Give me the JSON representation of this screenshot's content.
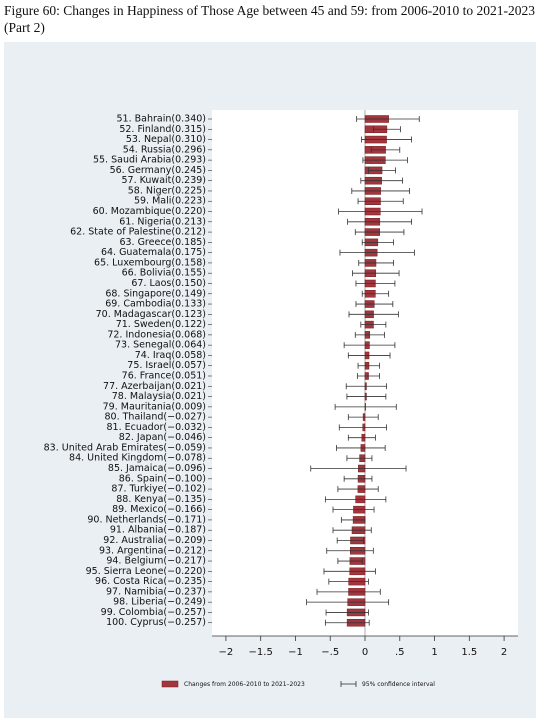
{
  "chart_data": {
    "type": "bar-errorbar",
    "title": "Figure 60: Changes in Happiness of Those Age between 45 and 59: from 2006-2010 to 2021-2023 (Part 2)",
    "categories": [
      "51. Bahrain(0.340)",
      "52. Finland(0.315)",
      "53. Nepal(0.310)",
      "54. Russia(0.296)",
      "55. Saudi Arabia(0.293)",
      "56. Germany(0.245)",
      "57. Kuwait(0.239)",
      "58. Niger(0.225)",
      "59. Mali(0.223)",
      "60. Mozambique(0.220)",
      "61. Nigeria(0.213)",
      "62. State of Palestine(0.212)",
      "63. Greece(0.185)",
      "64. Guatemala(0.175)",
      "65. Luxembourg(0.158)",
      "66. Bolivia(0.155)",
      "67. Laos(0.150)",
      "68. Singapore(0.149)",
      "69. Cambodia(0.133)",
      "70. Madagascar(0.123)",
      "71. Sweden(0.122)",
      "72. Indonesia(0.068)",
      "73. Senegal(0.064)",
      "74. Iraq(0.058)",
      "75. Israel(0.057)",
      "76. France(0.051)",
      "77. Azerbaijan(0.021)",
      "78. Malaysia(0.021)",
      "79. Mauritania(0.009)",
      "80. Thailand(−0.027)",
      "81. Ecuador(−0.032)",
      "82. Japan(−0.046)",
      "83. United Arab Emirates(−0.059)",
      "84. United Kingdom(−0.078)",
      "85. Jamaica(−0.096)",
      "86. Spain(−0.100)",
      "87. Turkiye(−0.102)",
      "88. Kenya(−0.135)",
      "89. Mexico(−0.166)",
      "90. Netherlands(−0.171)",
      "91. Albania(−0.187)",
      "92. Australia(−0.209)",
      "93. Argentina(−0.212)",
      "94. Belgium(−0.217)",
      "95. Sierra Leone(−0.220)",
      "96. Costa Rica(−0.235)",
      "97. Namibia(−0.237)",
      "98. Liberia(−0.249)",
      "99. Colombia(−0.257)",
      "100. Cyprus(−0.257)"
    ],
    "series": [
      {
        "name": "Changes from 2006–2010 to 2021–2023",
        "color": "#a3353c",
        "values": [
          0.34,
          0.315,
          0.31,
          0.296,
          0.293,
          0.245,
          0.239,
          0.225,
          0.223,
          0.22,
          0.213,
          0.212,
          0.185,
          0.175,
          0.158,
          0.155,
          0.15,
          0.149,
          0.133,
          0.123,
          0.122,
          0.068,
          0.064,
          0.058,
          0.057,
          0.051,
          0.021,
          0.021,
          0.009,
          -0.027,
          -0.032,
          -0.046,
          -0.059,
          -0.078,
          -0.096,
          -0.1,
          -0.102,
          -0.135,
          -0.166,
          -0.171,
          -0.187,
          -0.209,
          -0.212,
          -0.217,
          -0.22,
          -0.235,
          -0.237,
          -0.249,
          -0.257,
          -0.257
        ]
      }
    ],
    "ci": {
      "name": "95% confidence interval",
      "color": "#333333",
      "lower": [
        -0.12,
        0.12,
        -0.05,
        0.09,
        -0.03,
        0.05,
        -0.06,
        -0.19,
        -0.1,
        -0.38,
        -0.25,
        -0.14,
        -0.04,
        -0.36,
        -0.09,
        -0.18,
        -0.13,
        -0.04,
        -0.13,
        -0.23,
        -0.06,
        -0.14,
        -0.3,
        -0.24,
        -0.1,
        -0.11,
        -0.27,
        -0.26,
        -0.43,
        -0.24,
        -0.37,
        -0.24,
        -0.41,
        -0.26,
        -0.78,
        -0.3,
        -0.39,
        -0.57,
        -0.46,
        -0.34,
        -0.46,
        -0.4,
        -0.55,
        -0.39,
        -0.59,
        -0.52,
        -0.69,
        -0.84,
        -0.56,
        -0.57
      ],
      "upper": [
        0.78,
        0.51,
        0.67,
        0.5,
        0.61,
        0.44,
        0.54,
        0.64,
        0.55,
        0.82,
        0.67,
        0.56,
        0.41,
        0.71,
        0.41,
        0.49,
        0.43,
        0.34,
        0.4,
        0.48,
        0.3,
        0.28,
        0.43,
        0.36,
        0.21,
        0.21,
        0.31,
        0.3,
        0.45,
        0.19,
        0.31,
        0.15,
        0.29,
        0.1,
        0.59,
        0.1,
        0.19,
        0.3,
        0.13,
        0.0,
        0.09,
        -0.02,
        0.12,
        -0.04,
        0.15,
        0.05,
        0.22,
        0.34,
        0.05,
        0.06
      ]
    },
    "xlim": [
      -2.2,
      2.2
    ],
    "xticks": [
      {
        "value": -2,
        "label": "−2"
      },
      {
        "value": -1.5,
        "label": "−1.5"
      },
      {
        "value": -1,
        "label": "−1"
      },
      {
        "value": -0.5,
        "label": "−.5"
      },
      0,
      {
        "value": 0.5,
        "label": ".5"
      },
      1,
      1.5,
      2
    ]
  }
}
